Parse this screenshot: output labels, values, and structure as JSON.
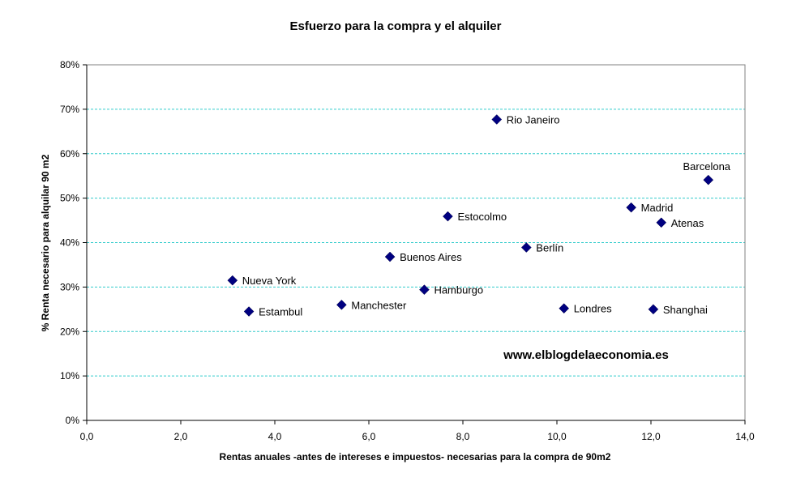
{
  "chart_data": {
    "type": "scatter",
    "title": "Esfuerzo para la compra y el alquiler",
    "xlabel": "Rentas anuales -antes de intereses e impuestos- necesarias para la compra de 90m2",
    "ylabel": "% Renta necesario para alquilar 90 m2",
    "xlim": [
      0,
      14
    ],
    "ylim": [
      0,
      0.8
    ],
    "x_ticks": [
      "0,0",
      "2,0",
      "4,0",
      "6,0",
      "8,0",
      "10,0",
      "12,0",
      "14,0"
    ],
    "y_ticks": [
      "0%",
      "10%",
      "20%",
      "30%",
      "40%",
      "50%",
      "60%",
      "70%",
      "80%"
    ],
    "grid": "horizontal dashed",
    "marker": "diamond",
    "marker_color": "#000080",
    "gridline_color": "#33cccc",
    "watermark": "www.elblogdelaeconomia.es",
    "points": [
      {
        "label": "Rio Janeiro",
        "x": 8.72,
        "y": 0.677
      },
      {
        "label": "Barcelona",
        "x": 13.22,
        "y": 0.541
      },
      {
        "label": "Madrid",
        "x": 11.58,
        "y": 0.479
      },
      {
        "label": "Atenas",
        "x": 12.22,
        "y": 0.445
      },
      {
        "label": "Estocolmo",
        "x": 7.68,
        "y": 0.459
      },
      {
        "label": "Berlín",
        "x": 9.35,
        "y": 0.389
      },
      {
        "label": "Buenos Aires",
        "x": 6.45,
        "y": 0.368
      },
      {
        "label": "Nueva York",
        "x": 3.1,
        "y": 0.315
      },
      {
        "label": "Hamburgo",
        "x": 7.18,
        "y": 0.294
      },
      {
        "label": "Manchester",
        "x": 5.42,
        "y": 0.26
      },
      {
        "label": "Estambul",
        "x": 3.45,
        "y": 0.245
      },
      {
        "label": "Londres",
        "x": 10.15,
        "y": 0.252
      },
      {
        "label": "Shanghai",
        "x": 12.05,
        "y": 0.25
      }
    ]
  }
}
